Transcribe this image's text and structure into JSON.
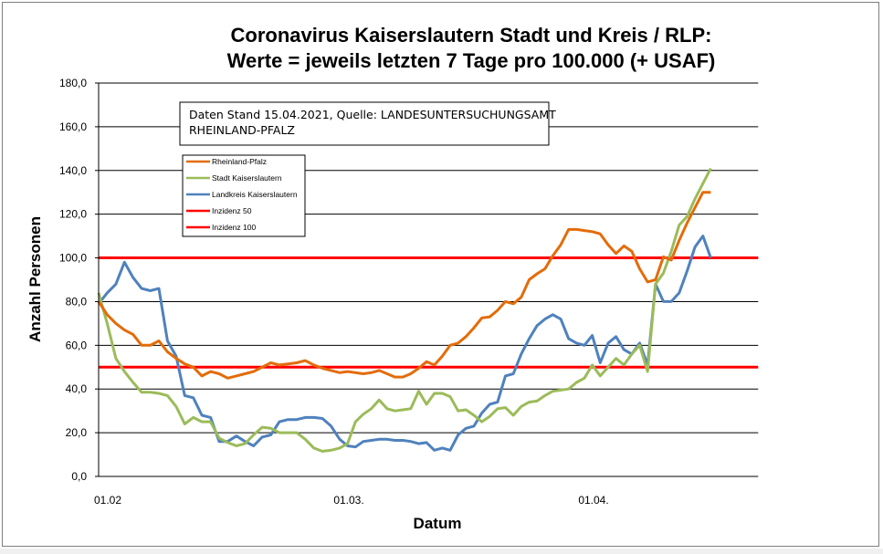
{
  "chart_data": {
    "type": "line",
    "title_lines": [
      "Coronavirus Kaiserslautern Stadt und Kreis / RLP:",
      "Werte = jeweils letzten 7 Tage pro 100.000 (+ USAF)"
    ],
    "xlabel": "Datum",
    "ylabel": "Anzahl Personen",
    "ylim": [
      0,
      180
    ],
    "xlim_days": [
      0,
      81
    ],
    "yticks": [
      "0,0",
      "20,0",
      "40,0",
      "60,0",
      "80,0",
      "100,0",
      "120,0",
      "140,0",
      "160,0",
      "180,0"
    ],
    "ytick_values": [
      0,
      20,
      40,
      60,
      80,
      100,
      120,
      140,
      160,
      180
    ],
    "xticks": [
      {
        "label": "01.02",
        "day": 0
      },
      {
        "label": "01.03.",
        "day": 28
      },
      {
        "label": "01.04.",
        "day": 59
      }
    ],
    "grid": "horizontal",
    "annotation": [
      "Daten Stand 15.04.2021, Quelle: LANDESUNTERSUCHUNGSAMT",
      "RHEINLAND-PFALZ"
    ],
    "legend_placement": "upper-left",
    "series": [
      {
        "name": "Rheinland-Pfalz",
        "color": "#e36c09",
        "start_day": 0,
        "values": [
          80,
          74,
          70,
          67,
          65,
          60,
          60,
          62,
          57,
          54,
          51.5,
          50,
          46,
          48,
          47,
          45,
          46,
          47,
          48,
          50,
          52,
          51,
          51.5,
          52,
          53,
          51,
          49.5,
          48.5,
          47.5,
          48,
          47.5,
          47,
          47.5,
          48.5,
          47,
          45.5,
          45.5,
          47,
          49.5,
          52.5,
          51,
          55,
          60,
          61,
          64,
          68,
          72.5,
          73,
          76,
          80,
          79,
          82,
          90,
          92.7,
          95,
          101,
          106,
          113,
          113,
          112.5,
          112,
          111,
          106,
          102,
          105.5,
          103,
          95,
          89,
          90,
          100.5,
          99,
          108,
          116,
          123,
          130,
          130
        ]
      },
      {
        "name": "Stadt Kaiserslautern",
        "color": "#9bbb59",
        "start_day": 0,
        "values": [
          84,
          70,
          54,
          48,
          43,
          38.5,
          38.5,
          38,
          37,
          32,
          24,
          27,
          25,
          25,
          17.5,
          15.5,
          14,
          15,
          19,
          22.5,
          22,
          20,
          20,
          20,
          17,
          13,
          11.5,
          12,
          13,
          15,
          25,
          28.5,
          31,
          35,
          31,
          30,
          30.5,
          31,
          39,
          33,
          38,
          38,
          36.5,
          30,
          30.5,
          28,
          25,
          27.5,
          31,
          31.5,
          28,
          32,
          34,
          34.5,
          37,
          39,
          39.5,
          40,
          43,
          45,
          51,
          46,
          50,
          54,
          51,
          56,
          60,
          48,
          88,
          93,
          103,
          115,
          119,
          127,
          134,
          141
        ]
      },
      {
        "name": "Landkreis Kaiserslautern",
        "color": "#4f81bd",
        "start_day": 0,
        "values": [
          79,
          84,
          88,
          98,
          91,
          86,
          85,
          86,
          62,
          55,
          37,
          36,
          28,
          27,
          16,
          16,
          18.5,
          16,
          14,
          18,
          19,
          25,
          26,
          26,
          27,
          27,
          26.5,
          23,
          17,
          14,
          13.5,
          16,
          16.5,
          17,
          17,
          16.5,
          16.5,
          16,
          15,
          15.5,
          12,
          13,
          12,
          19,
          22,
          23,
          29,
          33,
          34,
          46,
          47,
          56,
          63,
          69,
          72,
          74,
          72,
          63,
          61,
          60,
          64.5,
          52,
          61,
          64,
          58,
          56,
          61,
          51,
          88,
          80,
          80,
          84,
          94,
          105,
          110,
          100
        ]
      },
      {
        "name": "Inzidenz 50",
        "color": "#ff0000",
        "constant": 50
      },
      {
        "name": "Inzidenz 100",
        "color": "#ff0000",
        "constant": 100
      }
    ]
  }
}
